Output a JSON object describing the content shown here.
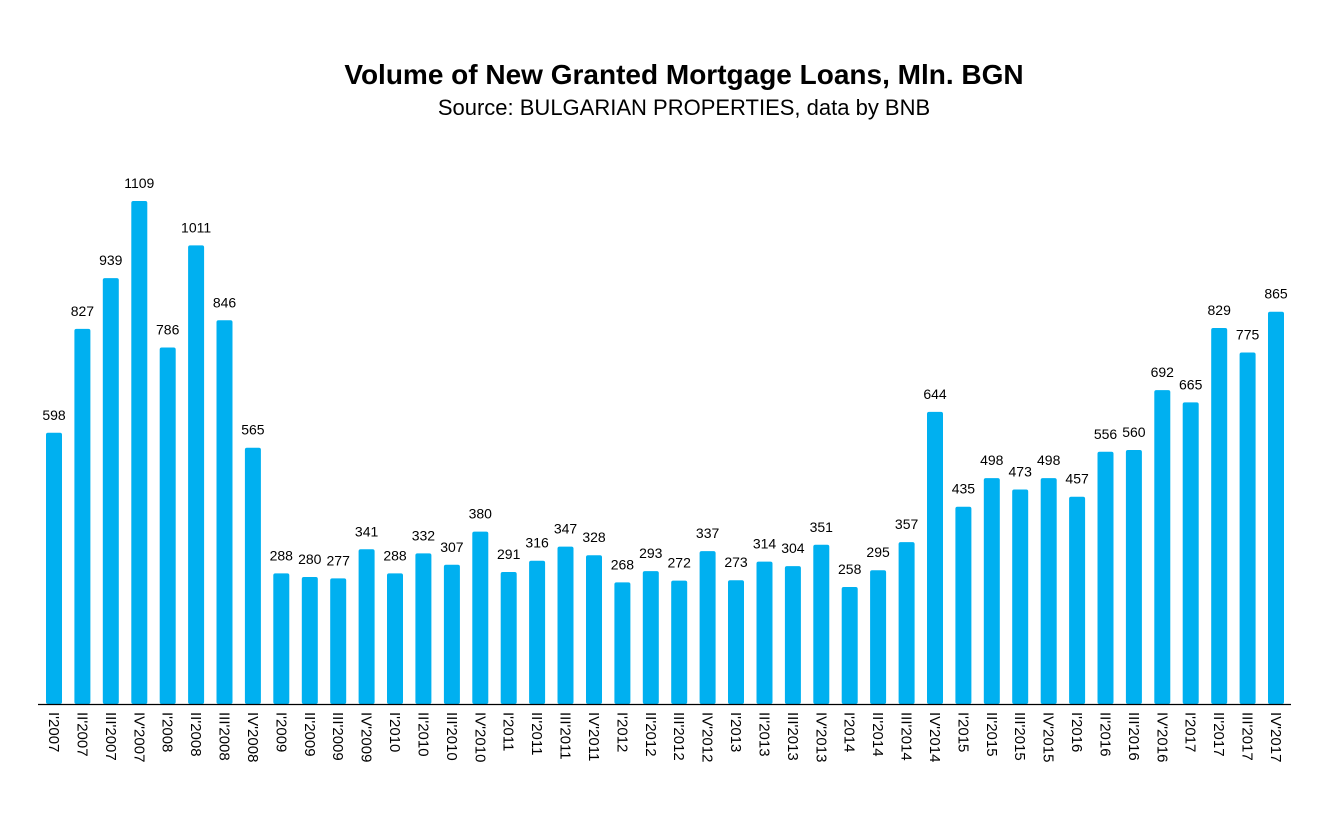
{
  "chart_data": {
    "type": "bar",
    "title": "Volume of New Granted Mortgage Loans, Mln. BGN",
    "subtitle": "Source: BULGARIAN PROPERTIES, data by BNB",
    "xlabel": "",
    "ylabel": "",
    "ylim": [
      0,
      1109
    ],
    "grid": false,
    "legend": "none",
    "bar_color": "#00B0F0",
    "categories": [
      "I'2007",
      "II'2007",
      "III'2007",
      "IV'2007",
      "I'2008",
      "II'2008",
      "III'2008",
      "IV'2008",
      "I'2009",
      "II'2009",
      "III'2009",
      "IV'2009",
      "I'2010",
      "II'2010",
      "III'2010",
      "IV'2010",
      "I'2011",
      "II'2011",
      "III'2011",
      "IV'2011",
      "I'2012",
      "II'2012",
      "III'2012",
      "IV'2012",
      "I'2013",
      "II'2013",
      "III'2013",
      "IV'2013",
      "I'2014",
      "II'2014",
      "III'2014",
      "IV'2014",
      "I'2015",
      "II'2015",
      "III'2015",
      "IV'2015",
      "I'2016",
      "II'2016",
      "III'2016",
      "IV'2016",
      "I'2017",
      "II'2017",
      "III'2017",
      "IV'2017"
    ],
    "values": [
      598,
      827,
      939,
      1109,
      786,
      1011,
      846,
      565,
      288,
      280,
      277,
      341,
      288,
      332,
      307,
      380,
      291,
      316,
      347,
      328,
      268,
      293,
      272,
      337,
      273,
      314,
      304,
      351,
      258,
      295,
      357,
      644,
      435,
      498,
      473,
      498,
      457,
      556,
      560,
      692,
      665,
      829,
      775,
      865
    ]
  }
}
